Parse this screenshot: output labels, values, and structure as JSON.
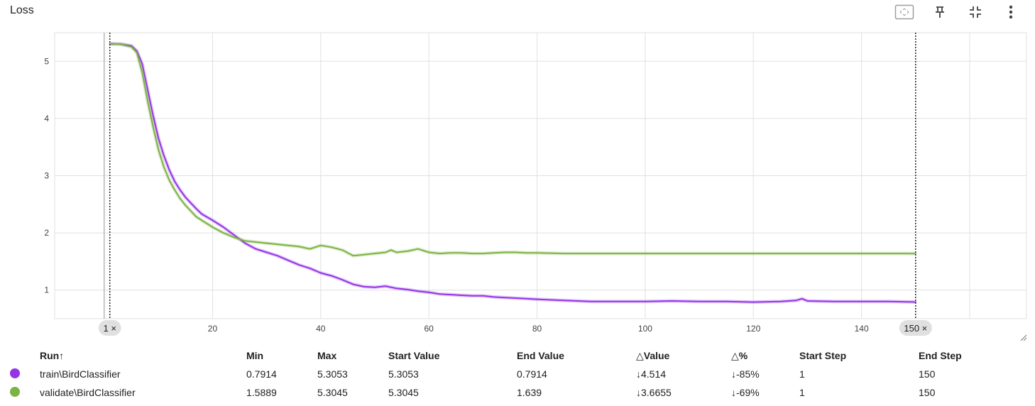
{
  "card": {
    "title": "Loss",
    "toolbar": [
      {
        "icon": "fit-domain-icon"
      },
      {
        "icon": "pin-icon"
      },
      {
        "icon": "collapse-icon"
      },
      {
        "icon": "more-vert-icon"
      }
    ]
  },
  "chart_data": {
    "type": "line",
    "title": "Loss",
    "xlabel": "",
    "ylabel": "",
    "xlim": [
      1,
      150
    ],
    "ylim": [
      0.5,
      5.5
    ],
    "x_ticks": [
      20,
      40,
      60,
      80,
      100,
      120,
      140
    ],
    "y_ticks": [
      1,
      2,
      3,
      4,
      5
    ],
    "grid": true,
    "range_markers": [
      {
        "step": 1,
        "label": "1"
      },
      {
        "step": 150,
        "label": "150"
      }
    ],
    "marker_close_glyph": "×",
    "series": [
      {
        "name": "train\\BirdClassifier",
        "color": "#9334e6",
        "x": [
          1,
          3,
          5,
          6,
          7,
          8,
          9,
          10,
          11,
          12,
          13,
          14,
          15,
          16,
          17,
          18,
          20,
          22,
          24,
          26,
          28,
          30,
          32,
          34,
          36,
          38,
          40,
          42,
          44,
          46,
          48,
          50,
          52,
          54,
          56,
          58,
          60,
          62,
          64,
          66,
          68,
          70,
          72,
          74,
          76,
          78,
          80,
          85,
          90,
          95,
          100,
          105,
          110,
          115,
          120,
          125,
          128,
          129,
          130,
          135,
          140,
          145,
          150
        ],
        "y": [
          5.3053,
          5.3,
          5.27,
          5.18,
          4.95,
          4.5,
          4.05,
          3.65,
          3.35,
          3.1,
          2.9,
          2.75,
          2.62,
          2.52,
          2.42,
          2.33,
          2.22,
          2.1,
          1.96,
          1.82,
          1.72,
          1.66,
          1.6,
          1.52,
          1.44,
          1.38,
          1.3,
          1.25,
          1.18,
          1.1,
          1.06,
          1.05,
          1.07,
          1.03,
          1.01,
          0.98,
          0.96,
          0.93,
          0.92,
          0.91,
          0.9,
          0.9,
          0.88,
          0.87,
          0.86,
          0.85,
          0.84,
          0.82,
          0.8,
          0.8,
          0.8,
          0.81,
          0.8,
          0.8,
          0.79,
          0.8,
          0.82,
          0.85,
          0.81,
          0.8,
          0.8,
          0.8,
          0.7914
        ]
      },
      {
        "name": "validate\\BirdClassifier",
        "color": "#7cb342",
        "x": [
          1,
          3,
          5,
          6,
          7,
          8,
          9,
          10,
          11,
          12,
          13,
          14,
          15,
          16,
          17,
          18,
          20,
          22,
          24,
          26,
          28,
          30,
          32,
          34,
          36,
          38,
          40,
          42,
          44,
          46,
          48,
          50,
          52,
          53,
          54,
          56,
          58,
          60,
          62,
          64,
          66,
          68,
          70,
          72,
          74,
          76,
          78,
          80,
          85,
          90,
          95,
          100,
          105,
          110,
          115,
          120,
          125,
          130,
          135,
          140,
          145,
          150
        ],
        "y": [
          5.3045,
          5.3,
          5.25,
          5.15,
          4.8,
          4.3,
          3.85,
          3.45,
          3.15,
          2.92,
          2.75,
          2.6,
          2.48,
          2.38,
          2.28,
          2.22,
          2.1,
          2.0,
          1.92,
          1.86,
          1.84,
          1.82,
          1.8,
          1.78,
          1.76,
          1.72,
          1.78,
          1.75,
          1.7,
          1.6,
          1.62,
          1.64,
          1.66,
          1.7,
          1.66,
          1.68,
          1.72,
          1.66,
          1.64,
          1.65,
          1.65,
          1.64,
          1.64,
          1.65,
          1.66,
          1.66,
          1.65,
          1.65,
          1.64,
          1.64,
          1.64,
          1.64,
          1.64,
          1.64,
          1.64,
          1.64,
          1.64,
          1.64,
          1.64,
          1.64,
          1.64,
          1.639
        ]
      }
    ]
  },
  "table": {
    "headers": {
      "run": "Run",
      "sort_glyph": "↑",
      "min": "Min",
      "max": "Max",
      "start_value": "Start Value",
      "end_value": "End Value",
      "delta_value": "△Value",
      "delta_pct": "△%",
      "start_step": "Start Step",
      "end_step": "End Step"
    },
    "rows": [
      {
        "color": "#9334e6",
        "run": "train\\BirdClassifier",
        "min": "0.7914",
        "max": "5.3053",
        "start_value": "5.3053",
        "end_value": "0.7914",
        "delta_value": "↓4.514",
        "delta_pct": "↓-85%",
        "start_step": "1",
        "end_step": "150"
      },
      {
        "color": "#7cb342",
        "run": "validate\\BirdClassifier",
        "min": "1.5889",
        "max": "5.3045",
        "start_value": "5.3045",
        "end_value": "1.639",
        "delta_value": "↓3.6655",
        "delta_pct": "↓-69%",
        "start_step": "1",
        "end_step": "150"
      }
    ]
  }
}
